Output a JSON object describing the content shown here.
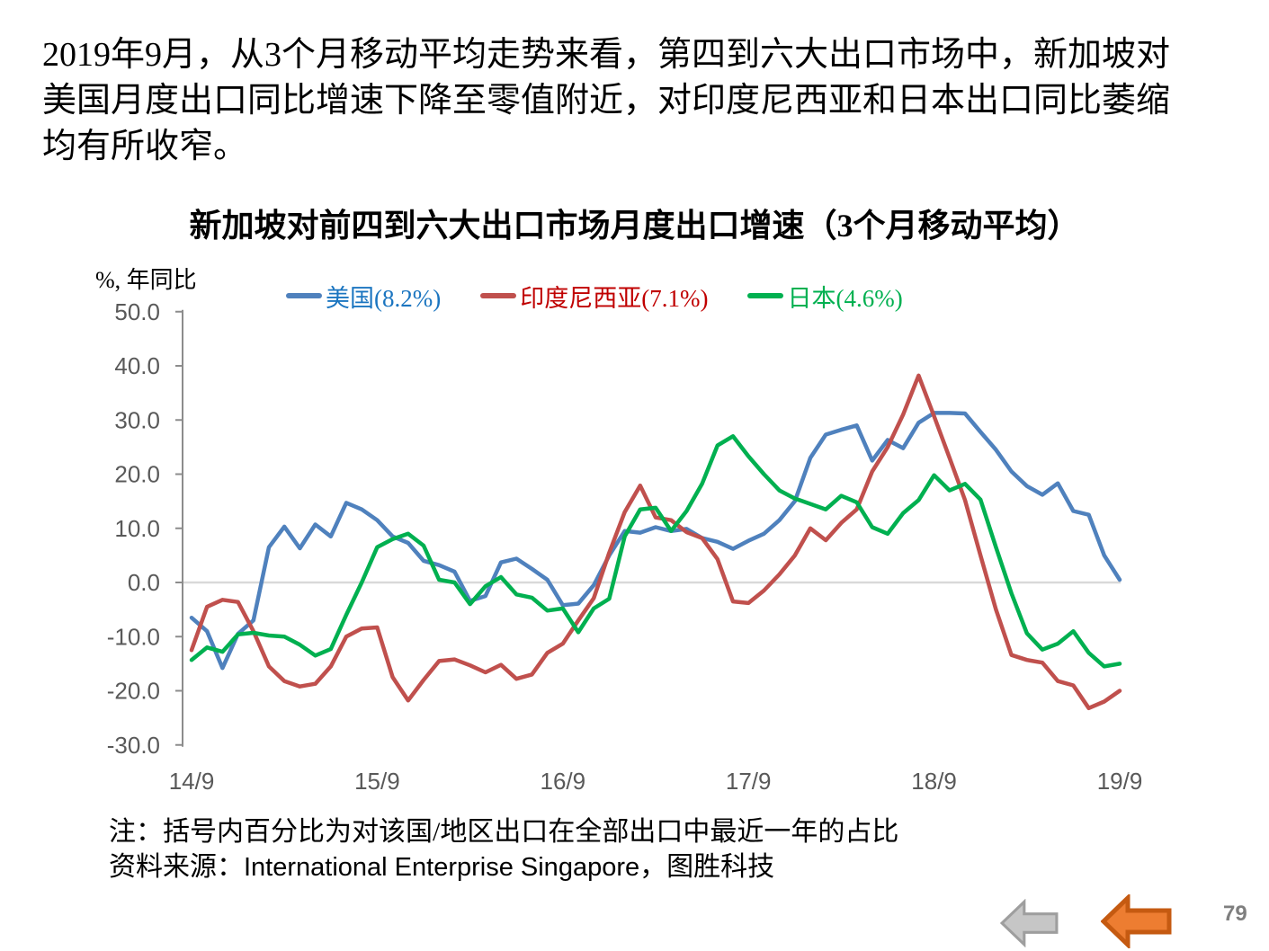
{
  "header": {
    "paragraph_lines": [
      "2019年9月，从3个月移动平均走势来看，第四到六大出口市场中，新加坡对",
      "美国月度出口同比增速下降至零值附近，对印度尼西亚和日本出口同比萎缩",
      "均有所收窄。"
    ]
  },
  "chart_data": {
    "type": "line",
    "title": "新加坡对前四到六大出口市场月度出口增速（3个月移动平均）",
    "y_unit_label": "%, 年同比",
    "xlabel": "",
    "ylabel": "%, 年同比",
    "ylim": [
      -30,
      50
    ],
    "grid": "zero-line-only",
    "legend_position": "top",
    "x_frequency": "monthly points from 14/9 to 19/9",
    "x_tick_labels": [
      "14/9",
      "15/9",
      "16/9",
      "17/9",
      "18/9",
      "19/9"
    ],
    "x_tick_indices": [
      0,
      12,
      24,
      36,
      48,
      60
    ],
    "y_tick_labels": [
      "50.0",
      "40.0",
      "30.0",
      "20.0",
      "10.0",
      "0.0",
      "-10.0",
      "-20.0",
      "-30.0"
    ],
    "y_tick_values": [
      50,
      40,
      30,
      20,
      10,
      0,
      -10,
      -20,
      -30
    ],
    "series": [
      {
        "id": "us",
        "name": "美国(8.2%)",
        "color": "#4F81BD",
        "label_color": "#1B75C0",
        "values": [
          -6.5,
          -9,
          -15.8,
          -9.5,
          -7,
          6.5,
          10.3,
          6.3,
          10.7,
          8.5,
          14.7,
          13.5,
          11.5,
          8.5,
          7.3,
          4,
          3.2,
          2,
          -3.4,
          -2.5,
          3.7,
          4.4,
          2.5,
          0.5,
          -4.2,
          -3.9,
          -0.5,
          5,
          9.5,
          9.2,
          10.2,
          9.5,
          9.9,
          8.2,
          7.5,
          6.2,
          7.7,
          9,
          11.5,
          15,
          23,
          27.3,
          28.2,
          29,
          22.5,
          26.3,
          24.8,
          29.5,
          31.3,
          31.3,
          31.2,
          27.8,
          24.5,
          20.5,
          17.8,
          16.2,
          18.3,
          13.2,
          12.5,
          5,
          0.5
        ]
      },
      {
        "id": "indonesia",
        "name": "印度尼西亚(7.1%)",
        "color": "#C0504D",
        "label_color": "#C00000",
        "values": [
          -12.5,
          -4.5,
          -3.2,
          -3.6,
          -9,
          -15.5,
          -18.2,
          -19.2,
          -18.7,
          -15.5,
          -10,
          -8.5,
          -8.3,
          -17.5,
          -21.8,
          -18,
          -14.5,
          -14.2,
          -15.3,
          -16.6,
          -15.2,
          -17.8,
          -17,
          -13,
          -11.3,
          -7,
          -2.9,
          5.5,
          13,
          17.9,
          12,
          11.5,
          9.3,
          8.2,
          4.3,
          -3.5,
          -3.8,
          -1.5,
          1.5,
          5,
          10,
          7.8,
          11,
          13.5,
          20.5,
          25,
          31,
          38.2,
          30.7,
          23,
          15.2,
          5,
          -5,
          -13.4,
          -14.3,
          -14.8,
          -18.2,
          -19,
          -23.2,
          -22,
          -20
        ]
      },
      {
        "id": "japan",
        "name": "日本(4.6%)",
        "color": "#00B050",
        "label_color": "#00B050",
        "values": [
          -14.3,
          -12,
          -12.8,
          -9.6,
          -9.3,
          -9.8,
          -10,
          -11.5,
          -13.5,
          -12.3,
          -6,
          0,
          6.5,
          8,
          9,
          6.8,
          0.5,
          0,
          -4,
          -0.7,
          1,
          -2.2,
          -2.8,
          -5.2,
          -4.8,
          -9.2,
          -4.8,
          -3,
          8.5,
          13.5,
          13.8,
          9.5,
          13.2,
          18.2,
          25.3,
          27,
          23.3,
          20,
          17,
          15.5,
          14.5,
          13.5,
          16,
          14.8,
          10.2,
          9,
          12.8,
          15.2,
          19.8,
          17,
          18.2,
          15.3,
          6.5,
          -2,
          -9.4,
          -12.4,
          -11.3,
          -9,
          -13,
          -15.5,
          -15
        ]
      }
    ]
  },
  "footnote": {
    "line1": "注：括号内百分比为对该国/地区出口在全部出口中最近一年的占比",
    "source_prefix": "资料来源：",
    "source_latin": "International Enterprise Singapore",
    "source_suffix": "，图胜科技"
  },
  "nav": {
    "page_number": "79"
  },
  "style": {
    "axis": "#8C8C8C",
    "gridline": "#D9D9D9",
    "tick_text": "#595959",
    "page_number": "#7F7F7F",
    "arrow_gray_fill": "#C6C6C6",
    "arrow_gray_stroke": "#9E9E9E",
    "arrow_orange_fill": "#ED7D31",
    "arrow_orange_stroke": "#C55A11"
  }
}
